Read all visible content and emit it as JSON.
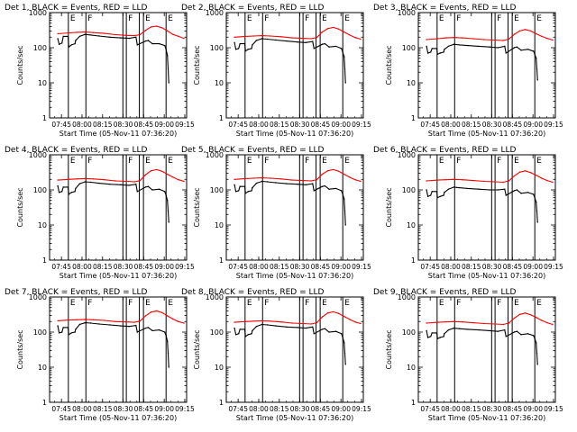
{
  "chart_data": {
    "type": "line",
    "start_label": "Start Time (05-Nov-11 07:36:20)",
    "ylabel": "Counts/sec",
    "yscale": "log",
    "ylim": [
      1,
      1000
    ],
    "yticks": [
      "1",
      "10",
      "100",
      "1000"
    ],
    "xlim_minutes": [
      0,
      100
    ],
    "xticks": [
      {
        "label": "07:45",
        "t": 8.67
      },
      {
        "label": "08:00",
        "t": 23.67
      },
      {
        "label": "08:15",
        "t": 38.67
      },
      {
        "label": "08:30",
        "t": 53.67
      },
      {
        "label": "08:45",
        "t": 68.67
      },
      {
        "label": "09:00",
        "t": 83.67
      },
      {
        "label": "09:15",
        "t": 98.67
      }
    ],
    "markers": [
      {
        "t": 13.7,
        "label": "E"
      },
      {
        "t": 26.5,
        "label": "F"
      },
      {
        "t": 53.5,
        "label": ""
      },
      {
        "t": 56.0,
        "label": "F"
      },
      {
        "t": 65.5,
        "label": ""
      },
      {
        "t": 68.5,
        "label": "E"
      },
      {
        "t": 85.0,
        "label": "E"
      }
    ],
    "panels": [
      {
        "title": "Det 1, BLACK = Events, RED = LLD",
        "series": [
          {
            "name": "LLD",
            "color": "#ff0000",
            "x": [
              6,
              14,
              20,
              26,
              32,
              40,
              48,
              56,
              62,
              66,
              70,
              74,
              78,
              82,
              86,
              90,
              94,
              98
            ],
            "y": [
              250,
              265,
              275,
              280,
              270,
              255,
              235,
              225,
              220,
              235,
              310,
              390,
              410,
              370,
              300,
              240,
              210,
              185
            ]
          },
          {
            "name": "Events",
            "color": "#000000",
            "x": [
              6,
              7,
              9,
              10,
              13.5,
              14,
              16,
              18.5,
              19,
              22,
              26,
              30,
              36,
              44,
              52,
              58,
              63,
              64,
              70,
              72,
              75,
              80,
              84,
              85,
              86,
              86.5,
              87
            ],
            "y": [
              180,
              125,
              135,
              210,
              210,
              105,
              120,
              130,
              160,
              210,
              240,
              230,
              215,
              200,
              190,
              185,
              200,
              120,
              155,
              160,
              130,
              130,
              115,
              90,
              60,
              25,
              10
            ]
          }
        ]
      },
      {
        "title": "Det 2, BLACK = Events, RED = LLD",
        "series": [
          {
            "name": "LLD",
            "color": "#ff0000",
            "x": [
              6,
              14,
              20,
              26,
              32,
              40,
              48,
              56,
              62,
              66,
              70,
              74,
              78,
              82,
              86,
              90,
              94,
              98
            ],
            "y": [
              200,
              210,
              215,
              220,
              215,
              205,
              190,
              185,
              180,
              195,
              280,
              350,
              380,
              340,
              280,
              230,
              195,
              175
            ]
          },
          {
            "name": "Events",
            "color": "#000000",
            "x": [
              6,
              7,
              9,
              10,
              13.5,
              14,
              16,
              18.5,
              19,
              22,
              26,
              30,
              36,
              44,
              52,
              58,
              63,
              64,
              70,
              72,
              75,
              80,
              84,
              85,
              86,
              86.5,
              87
            ],
            "y": [
              140,
              90,
              95,
              130,
              130,
              80,
              90,
              95,
              120,
              160,
              180,
              175,
              165,
              155,
              145,
              140,
              150,
              95,
              125,
              130,
              105,
              110,
              95,
              75,
              55,
              25,
              10
            ]
          }
        ]
      },
      {
        "title": "Det 3, BLACK = Events, RED = LLD",
        "series": [
          {
            "name": "LLD",
            "color": "#ff0000",
            "x": [
              6,
              14,
              20,
              26,
              32,
              40,
              48,
              56,
              62,
              66,
              70,
              74,
              78,
              82,
              86,
              90,
              94,
              98
            ],
            "y": [
              170,
              180,
              190,
              195,
              190,
              180,
              170,
              165,
              160,
              175,
              240,
              300,
              330,
              300,
              250,
              210,
              185,
              165
            ]
          },
          {
            "name": "Events",
            "color": "#000000",
            "x": [
              6,
              7,
              9,
              10,
              13.5,
              14,
              16,
              18.5,
              19,
              22,
              26,
              30,
              36,
              44,
              52,
              58,
              63,
              64,
              70,
              72,
              75,
              80,
              84,
              85,
              86,
              86.5,
              87
            ],
            "y": [
              110,
              70,
              75,
              95,
              95,
              65,
              70,
              75,
              90,
              110,
              125,
              120,
              115,
              110,
              105,
              100,
              110,
              70,
              100,
              105,
              85,
              90,
              80,
              65,
              50,
              25,
              12
            ]
          }
        ]
      },
      {
        "title": "Det 4, BLACK = Events, RED = LLD",
        "series": [
          {
            "name": "LLD",
            "color": "#ff0000",
            "x": [
              6,
              14,
              20,
              26,
              32,
              40,
              48,
              56,
              62,
              66,
              70,
              74,
              78,
              82,
              86,
              90,
              94,
              98
            ],
            "y": [
              190,
              200,
              205,
              210,
              205,
              195,
              180,
              175,
              170,
              185,
              270,
              350,
              380,
              340,
              280,
              230,
              195,
              175
            ]
          },
          {
            "name": "Events",
            "color": "#000000",
            "x": [
              6,
              7,
              9,
              10,
              13.5,
              14,
              16,
              18.5,
              19,
              22,
              26,
              30,
              36,
              44,
              52,
              58,
              63,
              64,
              70,
              72,
              75,
              80,
              84,
              85,
              86,
              86.5,
              87
            ],
            "y": [
              130,
              85,
              90,
              120,
              120,
              75,
              85,
              90,
              110,
              150,
              170,
              165,
              155,
              145,
              140,
              135,
              145,
              90,
              120,
              125,
              100,
              105,
              90,
              70,
              50,
              25,
              12
            ]
          }
        ]
      },
      {
        "title": "Det 5, BLACK = Events, RED = LLD",
        "series": [
          {
            "name": "LLD",
            "color": "#ff0000",
            "x": [
              6,
              14,
              20,
              26,
              32,
              40,
              48,
              56,
              62,
              66,
              70,
              74,
              78,
              82,
              86,
              90,
              94,
              98
            ],
            "y": [
              200,
              210,
              215,
              220,
              215,
              205,
              190,
              185,
              180,
              195,
              280,
              350,
              380,
              340,
              280,
              230,
              195,
              175
            ]
          },
          {
            "name": "Events",
            "color": "#000000",
            "x": [
              6,
              7,
              9,
              10,
              13.5,
              14,
              16,
              18.5,
              19,
              22,
              26,
              30,
              36,
              44,
              52,
              58,
              63,
              64,
              70,
              72,
              75,
              80,
              84,
              85,
              86,
              86.5,
              87
            ],
            "y": [
              140,
              90,
              95,
              125,
              125,
              80,
              90,
              95,
              115,
              155,
              175,
              170,
              160,
              150,
              145,
              140,
              150,
              95,
              125,
              130,
              105,
              110,
              95,
              75,
              55,
              25,
              10
            ]
          }
        ]
      },
      {
        "title": "Det 6, BLACK = Events, RED = LLD",
        "series": [
          {
            "name": "LLD",
            "color": "#ff0000",
            "x": [
              6,
              14,
              20,
              26,
              32,
              40,
              48,
              56,
              62,
              66,
              70,
              74,
              78,
              82,
              86,
              90,
              94,
              98
            ],
            "y": [
              180,
              190,
              195,
              200,
              195,
              185,
              175,
              170,
              165,
              180,
              250,
              320,
              350,
              310,
              260,
              215,
              185,
              165
            ]
          },
          {
            "name": "Events",
            "color": "#000000",
            "x": [
              6,
              7,
              9,
              10,
              13.5,
              14,
              16,
              18.5,
              19,
              22,
              26,
              30,
              36,
              44,
              52,
              58,
              63,
              64,
              70,
              72,
              75,
              80,
              84,
              85,
              86,
              86.5,
              87
            ],
            "y": [
              100,
              65,
              70,
              90,
              90,
              60,
              65,
              70,
              85,
              105,
              120,
              115,
              110,
              105,
              100,
              100,
              105,
              70,
              95,
              100,
              80,
              85,
              75,
              60,
              45,
              25,
              12
            ]
          }
        ]
      },
      {
        "title": "Det 7, BLACK = Events, RED = LLD",
        "series": [
          {
            "name": "LLD",
            "color": "#ff0000",
            "x": [
              6,
              14,
              20,
              26,
              32,
              40,
              48,
              56,
              62,
              66,
              70,
              74,
              78,
              82,
              86,
              90,
              94,
              98
            ],
            "y": [
              210,
              220,
              225,
              230,
              225,
              215,
              200,
              195,
              190,
              205,
              290,
              370,
              400,
              360,
              290,
              235,
              200,
              180
            ]
          },
          {
            "name": "Events",
            "color": "#000000",
            "x": [
              6,
              7,
              9,
              10,
              13.5,
              14,
              16,
              18.5,
              19,
              22,
              26,
              30,
              36,
              44,
              52,
              58,
              63,
              64,
              70,
              72,
              75,
              80,
              84,
              85,
              86,
              86.5,
              87
            ],
            "y": [
              150,
              95,
              100,
              135,
              135,
              85,
              95,
              100,
              120,
              165,
              185,
              180,
              170,
              160,
              150,
              145,
              155,
              100,
              130,
              135,
              110,
              115,
              100,
              80,
              55,
              25,
              10
            ]
          }
        ]
      },
      {
        "title": "Det 8, BLACK = Events, RED = LLD",
        "series": [
          {
            "name": "LLD",
            "color": "#ff0000",
            "x": [
              6,
              14,
              20,
              26,
              32,
              40,
              48,
              56,
              62,
              66,
              70,
              74,
              78,
              82,
              86,
              90,
              94,
              98
            ],
            "y": [
              190,
              200,
              205,
              210,
              205,
              195,
              180,
              175,
              170,
              185,
              270,
              350,
              380,
              340,
              280,
              230,
              195,
              175
            ]
          },
          {
            "name": "Events",
            "color": "#000000",
            "x": [
              6,
              7,
              9,
              10,
              13.5,
              14,
              16,
              18.5,
              19,
              22,
              26,
              30,
              36,
              44,
              52,
              58,
              63,
              64,
              70,
              72,
              75,
              80,
              84,
              85,
              86,
              86.5,
              87
            ],
            "y": [
              130,
              85,
              90,
              120,
              120,
              75,
              85,
              90,
              110,
              145,
              165,
              160,
              150,
              140,
              135,
              130,
              140,
              90,
              120,
              125,
              100,
              105,
              90,
              70,
              50,
              25,
              12
            ]
          }
        ]
      },
      {
        "title": "Det 9, BLACK = Events, RED = LLD",
        "series": [
          {
            "name": "LLD",
            "color": "#ff0000",
            "x": [
              6,
              14,
              20,
              26,
              32,
              40,
              48,
              56,
              62,
              66,
              70,
              74,
              78,
              82,
              86,
              90,
              94,
              98
            ],
            "y": [
              180,
              190,
              195,
              200,
              195,
              185,
              175,
              170,
              165,
              180,
              250,
              320,
              350,
              310,
              260,
              215,
              185,
              165
            ]
          },
          {
            "name": "Events",
            "color": "#000000",
            "x": [
              6,
              7,
              9,
              10,
              13.5,
              14,
              16,
              18.5,
              19,
              22,
              26,
              30,
              36,
              44,
              52,
              58,
              63,
              64,
              70,
              72,
              75,
              80,
              84,
              85,
              86,
              86.5,
              87
            ],
            "y": [
              110,
              70,
              75,
              95,
              95,
              65,
              70,
              75,
              90,
              115,
              130,
              125,
              120,
              115,
              110,
              105,
              115,
              75,
              100,
              105,
              85,
              90,
              80,
              65,
              50,
              25,
              12
            ]
          }
        ]
      }
    ]
  }
}
